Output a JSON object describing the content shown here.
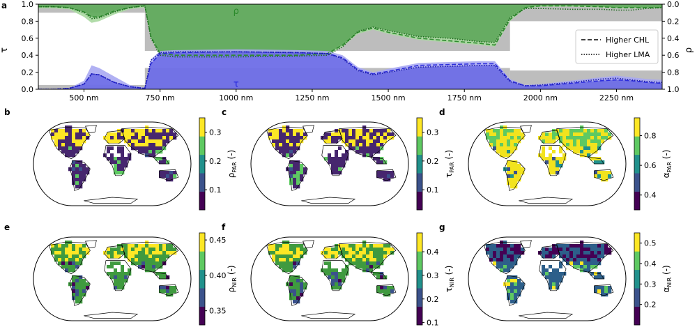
{
  "chart_data": [
    {
      "panel": "a",
      "type": "area",
      "xlabel": "",
      "ylabel": "τ",
      "ylabel_right": "ρ",
      "xlim": [
        350,
        2400
      ],
      "ylim": [
        0,
        1.0
      ],
      "ylim_right": [
        1.0,
        0.0
      ],
      "xticks": [
        500,
        750,
        1000,
        1250,
        1500,
        1750,
        2000,
        2250
      ],
      "xtick_labels": [
        "500 nm",
        "750 nm",
        "1000 nm",
        "1250 nm",
        "1500 nm",
        "1750 nm",
        "2000 nm",
        "2250 nm"
      ],
      "yticks": [
        0.0,
        0.2,
        0.4,
        0.6,
        0.8,
        1.0
      ],
      "ytick_labels": [
        "0.0",
        "0.2",
        "0.4",
        "0.6",
        "0.8",
        "1.0"
      ],
      "yticks_right": [
        0.0,
        0.2,
        0.4,
        0.6,
        0.8,
        1.0
      ],
      "ytick_labels_right": [
        "0.0",
        "0.2",
        "0.4",
        "0.6",
        "0.8",
        "1.0"
      ],
      "series_labels": [
        {
          "name": "ρ",
          "x": 1000,
          "y": 0.92,
          "color": "#2a8a2a"
        },
        {
          "name": "τ",
          "x": 1000,
          "y": 0.06,
          "color": "#2020dd"
        }
      ],
      "legend": {
        "placement": "right",
        "entries": [
          {
            "label": "Higher CHL",
            "style": "dashed"
          },
          {
            "label": "Higher LMA",
            "style": "dotted"
          }
        ]
      },
      "x": [
        350,
        400,
        450,
        500,
        525,
        550,
        600,
        650,
        700,
        720,
        750,
        800,
        1000,
        1200,
        1300,
        1350,
        1400,
        1450,
        1500,
        1600,
        1700,
        1800,
        1850,
        1900,
        1950,
        2000,
        2100,
        2200,
        2250,
        2300,
        2350,
        2400
      ],
      "rho_top_curve": [
        0.05,
        0.05,
        0.06,
        0.15,
        0.22,
        0.2,
        0.12,
        0.06,
        0.04,
        0.4,
        0.6,
        0.62,
        0.62,
        0.62,
        0.6,
        0.5,
        0.35,
        0.3,
        0.35,
        0.42,
        0.45,
        0.48,
        0.5,
        0.2,
        0.05,
        0.03,
        0.03,
        0.04,
        0.05,
        0.05,
        0.05,
        0.05
      ],
      "rho_dashed_higher_chl": [
        0.03,
        0.03,
        0.04,
        0.09,
        0.15,
        0.15,
        0.08,
        0.04,
        0.02,
        0.38,
        0.58,
        0.6,
        0.6,
        0.6,
        0.58,
        0.48,
        0.33,
        0.28,
        0.33,
        0.4,
        0.43,
        0.46,
        0.48,
        0.18,
        0.04,
        0.02,
        0.02,
        0.03,
        0.04,
        0.04,
        0.04,
        0.04
      ],
      "rho_dotted_higher_lma": [
        0.03,
        0.03,
        0.04,
        0.1,
        0.17,
        0.16,
        0.09,
        0.04,
        0.02,
        0.4,
        0.6,
        0.62,
        0.62,
        0.61,
        0.6,
        0.5,
        0.32,
        0.27,
        0.31,
        0.38,
        0.4,
        0.44,
        0.45,
        0.16,
        0.05,
        0.05,
        0.06,
        0.06,
        0.07,
        0.07,
        0.05,
        0.04
      ],
      "tau_upper_band": [
        0.0,
        0.0,
        0.01,
        0.1,
        0.28,
        0.25,
        0.15,
        0.05,
        0.02,
        0.35,
        0.45,
        0.46,
        0.47,
        0.46,
        0.45,
        0.4,
        0.26,
        0.2,
        0.24,
        0.31,
        0.32,
        0.33,
        0.33,
        0.12,
        0.05,
        0.06,
        0.1,
        0.14,
        0.16,
        0.14,
        0.12,
        0.11
      ],
      "tau_dashed_higher_chl": [
        0.0,
        0.0,
        0.01,
        0.06,
        0.18,
        0.17,
        0.08,
        0.03,
        0.01,
        0.3,
        0.42,
        0.43,
        0.44,
        0.43,
        0.42,
        0.37,
        0.23,
        0.18,
        0.21,
        0.28,
        0.29,
        0.3,
        0.3,
        0.1,
        0.04,
        0.04,
        0.07,
        0.1,
        0.11,
        0.1,
        0.08,
        0.07
      ],
      "tau_dotted_higher_lma": [
        0.0,
        0.0,
        0.01,
        0.06,
        0.18,
        0.17,
        0.08,
        0.03,
        0.01,
        0.34,
        0.43,
        0.44,
        0.44,
        0.43,
        0.42,
        0.36,
        0.22,
        0.17,
        0.2,
        0.26,
        0.27,
        0.28,
        0.28,
        0.09,
        0.04,
        0.05,
        0.08,
        0.12,
        0.13,
        0.11,
        0.09,
        0.08
      ],
      "gray_band_step": [
        {
          "x0": 350,
          "x1": 700,
          "tau_top": 0.05,
          "rho_bottom": 0.1
        },
        {
          "x0": 700,
          "x1": 1900,
          "tau_top": 0.25,
          "rho_bottom": 0.55
        },
        {
          "x0": 1900,
          "x1": 2400,
          "tau_top": 0.22,
          "rho_bottom": 0.2
        }
      ],
      "colors": {
        "rho": "#2e8b2e",
        "rho_band": "#a9d8a0",
        "tau": "#2c2cdc",
        "tau_band": "#a9a9f2",
        "gray": "#bdbdbd"
      }
    },
    {
      "panel": "b",
      "type": "heatmap",
      "map": "world",
      "colorbar_label": "ρ",
      "colorbar_sub": "PAR",
      "colorbar_unit": "(-)",
      "colorbar_ticks": [
        "0.3",
        "0.2",
        "0.1"
      ],
      "colorbar_tick_values": [
        0.3,
        0.2,
        0.1
      ],
      "clim": [
        0.03,
        0.35
      ],
      "colormap": [
        "#440154",
        "#3b528b",
        "#21918c",
        "#5ec962",
        "#fde725"
      ],
      "land_dominant": "#46266e",
      "highlights": [
        "#fde725",
        "#5ec962",
        "#3b528b"
      ]
    },
    {
      "panel": "c",
      "type": "heatmap",
      "map": "world",
      "colorbar_label": "τ",
      "colorbar_sub": "PAR",
      "colorbar_unit": "(-)",
      "colorbar_ticks": [
        "0.3",
        "0.2",
        "0.1"
      ],
      "colorbar_tick_values": [
        0.3,
        0.2,
        0.1
      ],
      "clim": [
        0.03,
        0.35
      ],
      "colormap": [
        "#440154",
        "#3b528b",
        "#21918c",
        "#5ec962",
        "#fde725"
      ],
      "land_dominant": "#46266e",
      "highlights": [
        "#fde725",
        "#5ec962",
        "#3b528b"
      ]
    },
    {
      "panel": "d",
      "type": "heatmap",
      "map": "world",
      "colorbar_label": "α",
      "colorbar_sub": "PAR",
      "colorbar_unit": "(-)",
      "colorbar_ticks": [
        "0.8",
        "0.6",
        "0.4"
      ],
      "colorbar_tick_values": [
        0.8,
        0.6,
        0.4
      ],
      "clim": [
        0.3,
        0.92
      ],
      "colormap": [
        "#440154",
        "#3b528b",
        "#21918c",
        "#5ec962",
        "#fde725"
      ],
      "land_dominant": "#f2e31e",
      "highlights": [
        "#5ec962",
        "#21918c",
        "#3b528b"
      ]
    },
    {
      "panel": "e",
      "type": "heatmap",
      "map": "world",
      "colorbar_label": "ρ",
      "colorbar_sub": "NIR",
      "colorbar_unit": "(-)",
      "colorbar_ticks": [
        "0.45",
        "0.40",
        "0.35"
      ],
      "colorbar_tick_values": [
        0.45,
        0.4,
        0.35
      ],
      "clim": [
        0.33,
        0.46
      ],
      "colormap": [
        "#440154",
        "#3b528b",
        "#21918c",
        "#5ec962",
        "#fde725"
      ],
      "land_dominant": "#3f9a3f",
      "highlights": [
        "#fde725",
        "#3b528b",
        "#440154"
      ]
    },
    {
      "panel": "f",
      "type": "heatmap",
      "map": "world",
      "colorbar_label": "τ",
      "colorbar_sub": "NIR",
      "colorbar_unit": "(-)",
      "colorbar_ticks": [
        "0.4",
        "0.3",
        "0.2",
        "0.1"
      ],
      "colorbar_tick_values": [
        0.4,
        0.3,
        0.2,
        0.1
      ],
      "clim": [
        0.09,
        0.48
      ],
      "colormap": [
        "#440154",
        "#3b528b",
        "#21918c",
        "#5ec962",
        "#fde725"
      ],
      "land_dominant": "#3f9a3f",
      "highlights": [
        "#fde725",
        "#3b528b",
        "#440154"
      ]
    },
    {
      "panel": "g",
      "type": "heatmap",
      "map": "world",
      "colorbar_label": "α",
      "colorbar_sub": "NIR",
      "colorbar_unit": "(-)",
      "colorbar_ticks": [
        "0.5",
        "0.4",
        "0.3",
        "0.2"
      ],
      "colorbar_tick_values": [
        0.5,
        0.4,
        0.3,
        0.2
      ],
      "clim": [
        0.1,
        0.55
      ],
      "colormap": [
        "#440154",
        "#3b528b",
        "#21918c",
        "#5ec962",
        "#fde725"
      ],
      "land_dominant": "#2d5f8a",
      "highlights": [
        "#440154",
        "#5ec962",
        "#fde725"
      ]
    }
  ]
}
